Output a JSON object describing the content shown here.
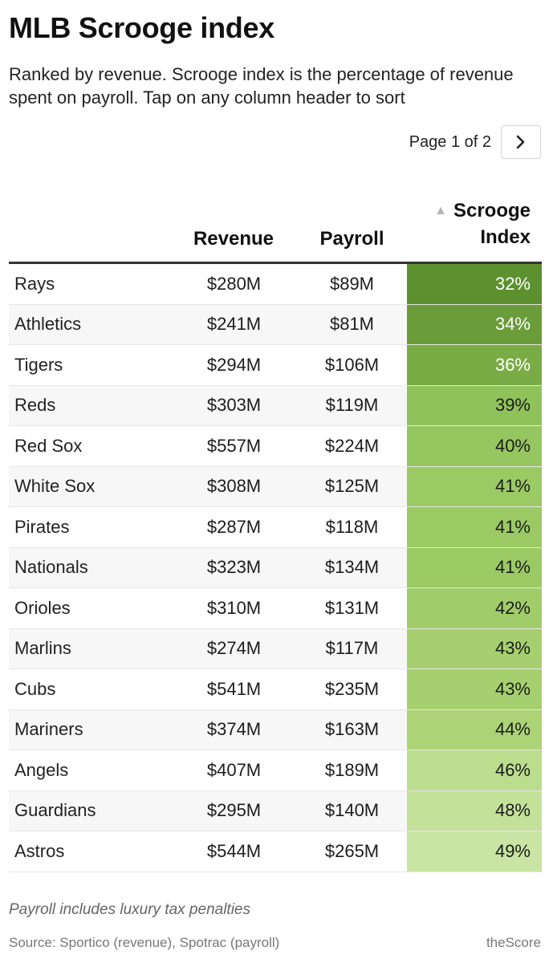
{
  "title": "MLB Scrooge index",
  "subtitle": "Ranked by revenue. Scrooge index is the percentage of revenue spent on payroll. Tap on any column header to sort",
  "pager": {
    "label": "Page 1 of 2",
    "next_icon": "chevron-right-icon"
  },
  "table": {
    "headers": {
      "team": "",
      "revenue": "Revenue",
      "payroll": "Payroll",
      "index": "Scrooge Index",
      "sort_icon": "sort-ascending-triangle-icon"
    },
    "rows": [
      {
        "team": "Rays",
        "revenue": "$280M",
        "payroll": "$89M",
        "index": "32%",
        "bg": "#5d912f",
        "fg": "#ffffff"
      },
      {
        "team": "Athletics",
        "revenue": "$241M",
        "payroll": "$81M",
        "index": "34%",
        "bg": "#6a9c39",
        "fg": "#ffffff"
      },
      {
        "team": "Tigers",
        "revenue": "$294M",
        "payroll": "$106M",
        "index": "36%",
        "bg": "#7aac46",
        "fg": "#ffffff"
      },
      {
        "team": "Reds",
        "revenue": "$303M",
        "payroll": "$119M",
        "index": "39%",
        "bg": "#90c25b",
        "fg": "#1c1c1c"
      },
      {
        "team": "Red Sox",
        "revenue": "$557M",
        "payroll": "$224M",
        "index": "40%",
        "bg": "#96c660",
        "fg": "#1c1c1c"
      },
      {
        "team": "White Sox",
        "revenue": "$308M",
        "payroll": "$125M",
        "index": "41%",
        "bg": "#9bca65",
        "fg": "#1c1c1c"
      },
      {
        "team": "Pirates",
        "revenue": "$287M",
        "payroll": "$118M",
        "index": "41%",
        "bg": "#9bca65",
        "fg": "#1c1c1c"
      },
      {
        "team": "Nationals",
        "revenue": "$323M",
        "payroll": "$134M",
        "index": "41%",
        "bg": "#9bca65",
        "fg": "#1c1c1c"
      },
      {
        "team": "Orioles",
        "revenue": "$310M",
        "payroll": "$131M",
        "index": "42%",
        "bg": "#a0cd6a",
        "fg": "#1c1c1c"
      },
      {
        "team": "Marlins",
        "revenue": "$274M",
        "payroll": "$117M",
        "index": "43%",
        "bg": "#a6d06f",
        "fg": "#1c1c1c"
      },
      {
        "team": "Cubs",
        "revenue": "$541M",
        "payroll": "$235M",
        "index": "43%",
        "bg": "#a6d06f",
        "fg": "#1c1c1c"
      },
      {
        "team": "Mariners",
        "revenue": "$374M",
        "payroll": "$163M",
        "index": "44%",
        "bg": "#acd376",
        "fg": "#1c1c1c"
      },
      {
        "team": "Angels",
        "revenue": "$407M",
        "payroll": "$189M",
        "index": "46%",
        "bg": "#bbdd8e",
        "fg": "#1c1c1c"
      },
      {
        "team": "Guardians",
        "revenue": "$295M",
        "payroll": "$140M",
        "index": "48%",
        "bg": "#c4e19a",
        "fg": "#1c1c1c"
      },
      {
        "team": "Astros",
        "revenue": "$544M",
        "payroll": "$265M",
        "index": "49%",
        "bg": "#c9e4a3",
        "fg": "#1c1c1c"
      }
    ]
  },
  "note": "Payroll includes luxury tax penalties",
  "footer": {
    "source": "Source: Sportico (revenue), Spotrac (payroll)",
    "brand": "theScore"
  }
}
